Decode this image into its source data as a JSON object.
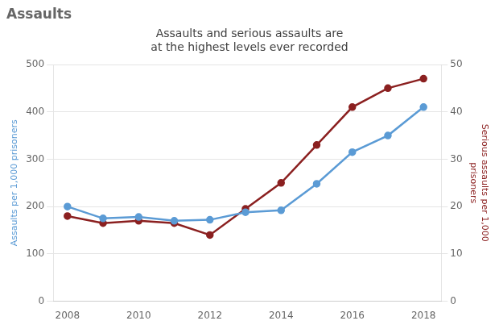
{
  "chart_data": {
    "type": "line",
    "title": "Assaults",
    "subtitle": [
      "Assaults and serious assaults are",
      "at the highest levels ever recorded"
    ],
    "x": [
      2008,
      2009,
      2010,
      2011,
      2012,
      2013,
      2014,
      2015,
      2016,
      2017,
      2018
    ],
    "series": [
      {
        "color": "#5b9bd5",
        "marker": "circle",
        "values": [
          200,
          175,
          178,
          170,
          172,
          188,
          192,
          248,
          315,
          350,
          410
        ]
      },
      {
        "color": "#8B2020",
        "marker": "circle",
        "axis": "y2",
        "values": [
          18,
          16.5,
          17,
          16.5,
          14,
          19.5,
          25,
          33,
          41,
          45,
          47
        ]
      }
    ],
    "xlim": [
      2007.6,
      2018.5
    ],
    "xticks": [
      2008,
      2010,
      2012,
      2014,
      2016,
      2018
    ],
    "ylim": [
      0,
      500
    ],
    "yticks": [
      0,
      100,
      200,
      300,
      400,
      500
    ],
    "y2lim": [
      0,
      50
    ],
    "y2ticks": [
      0,
      10,
      20,
      30,
      40,
      50
    ],
    "ylabel": "Assaults per 1,000 prisoners",
    "y2label": "Serious assaults per 1,000\nprisoners",
    "grid": true
  }
}
